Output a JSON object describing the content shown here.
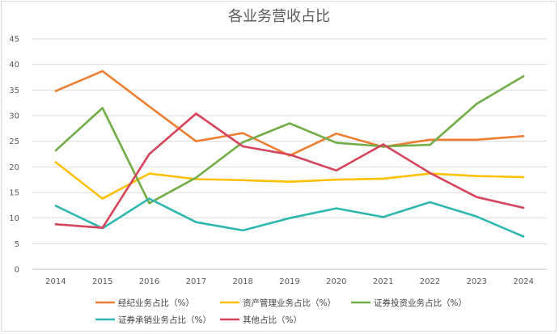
{
  "chart_data": {
    "type": "line",
    "title": "各业务营收占比",
    "xlabel": "",
    "ylabel": "",
    "x": [
      "2014",
      "2015",
      "2016",
      "2017",
      "2018",
      "2019",
      "2020",
      "2021",
      "2022",
      "2023",
      "2024"
    ],
    "ylim": [
      0,
      45
    ],
    "yticks": [
      "0",
      "5",
      "10",
      "15",
      "20",
      "25",
      "30",
      "35",
      "40",
      "45"
    ],
    "grid": true,
    "legend_position": "bottom",
    "series": [
      {
        "name": "经纪业务占比（%）",
        "color": "#ED7D31",
        "values": [
          34.8,
          38.7,
          31.8,
          25.0,
          26.6,
          22.2,
          26.5,
          23.9,
          25.3,
          25.3,
          26.0
        ]
      },
      {
        "name": "资产管理业务占比（%）",
        "color": "#FFC000",
        "values": [
          20.9,
          13.8,
          18.7,
          17.6,
          17.4,
          17.1,
          17.5,
          17.7,
          18.7,
          18.2,
          18.0
        ]
      },
      {
        "name": "证券投资业务占比（%）",
        "color": "#70AD47",
        "values": [
          23.2,
          31.5,
          12.9,
          17.9,
          24.8,
          28.5,
          24.7,
          24.0,
          24.3,
          32.3,
          37.7
        ]
      },
      {
        "name": "证券承销业务占比（%）",
        "color": "#2EB7B0",
        "values": [
          12.4,
          8.0,
          13.8,
          9.2,
          7.6,
          10.0,
          11.9,
          10.2,
          13.1,
          10.3,
          6.4
        ]
      },
      {
        "name": "其他占比（%）",
        "color": "#D6445C",
        "values": [
          8.8,
          8.1,
          22.5,
          30.4,
          24.0,
          22.4,
          19.3,
          24.4,
          18.8,
          14.1,
          12.0
        ]
      }
    ]
  }
}
